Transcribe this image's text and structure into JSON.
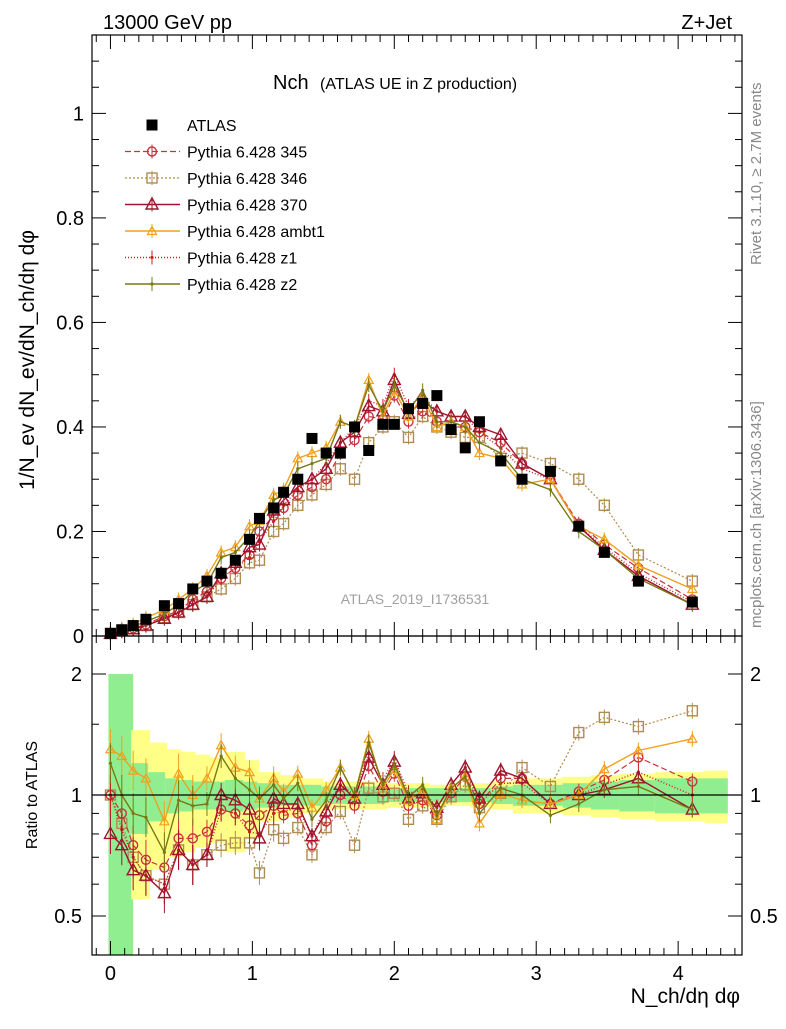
{
  "header": {
    "left": "13000 GeV pp",
    "right": "Z+Jet",
    "side_rivet": "Rivet 3.1.10, ≥ 2.7M events",
    "side_mcplots": "mcplots.cern.ch [arXiv:1306.3436]"
  },
  "chart_data": {
    "type": "line",
    "title": "Nch",
    "subtitle": "(ATLAS UE in Z production)",
    "watermark": "ATLAS_2019_I1736531",
    "xlabel": "N_ch/dη dφ",
    "ylabel": "1/N_ev dN_ev/dN_ch/dη dφ",
    "ratio_ylabel": "Ratio to ATLAS",
    "xlim": [
      -0.13,
      4.45
    ],
    "ylim": [
      0,
      1.15
    ],
    "ratio_ylim": [
      0.33,
      2.35
    ],
    "x_ticks": [
      "0",
      "1",
      "2",
      "3",
      "4"
    ],
    "y_ticks": [
      "0",
      "0.2",
      "0.4",
      "0.6",
      "0.8",
      "1"
    ],
    "ratio_y_ticks": [
      "0.5",
      "1",
      "2"
    ],
    "grid": false,
    "legend_position": "top-left",
    "colors": {
      "data": "#000000",
      "p345": "#c8323c",
      "p346": "#b08c50",
      "p370": "#a0142d",
      "ambt1": "#f0a01e",
      "z1": "#c81e1e",
      "z2": "#787814",
      "band_inner": "#90ee90",
      "band_outer": "#ffff88"
    },
    "x": [
      0.0,
      0.08,
      0.16,
      0.25,
      0.38,
      0.48,
      0.58,
      0.68,
      0.78,
      0.88,
      0.98,
      1.05,
      1.15,
      1.22,
      1.32,
      1.42,
      1.52,
      1.62,
      1.72,
      1.82,
      1.92,
      2.0,
      2.1,
      2.2,
      2.3,
      2.4,
      2.5,
      2.6,
      2.75,
      2.9,
      3.1,
      3.3,
      3.48,
      3.72,
      4.1
    ],
    "band_x": [
      0.0,
      0.16,
      0.28,
      0.4,
      0.5,
      0.6,
      0.7,
      0.82,
      0.95,
      1.05,
      1.2,
      1.35,
      1.5,
      1.65,
      1.8,
      1.95,
      2.1,
      2.25,
      2.4,
      2.55,
      2.7,
      2.85,
      3.0,
      3.2,
      3.4,
      3.6,
      3.85,
      4.2
    ],
    "band_inner_frac": [
      1.0,
      0.2,
      0.14,
      0.1,
      0.09,
      0.08,
      0.08,
      0.09,
      0.08,
      0.07,
      0.06,
      0.06,
      0.05,
      0.05,
      0.05,
      0.04,
      0.04,
      0.04,
      0.04,
      0.04,
      0.05,
      0.06,
      0.06,
      0.07,
      0.08,
      0.09,
      0.1,
      0.1
    ],
    "band_outer_frac": [
      1.0,
      0.45,
      0.35,
      0.3,
      0.28,
      0.26,
      0.24,
      0.28,
      0.22,
      0.14,
      0.12,
      0.1,
      0.08,
      0.08,
      0.08,
      0.07,
      0.07,
      0.06,
      0.06,
      0.07,
      0.08,
      0.1,
      0.1,
      0.11,
      0.12,
      0.13,
      0.14,
      0.15
    ],
    "series": [
      {
        "key": "data",
        "name": "ATLAS",
        "values": [
          0.005,
          0.012,
          0.02,
          0.032,
          0.058,
          0.062,
          0.09,
          0.105,
          0.12,
          0.145,
          0.185,
          0.225,
          0.245,
          0.275,
          0.3,
          0.378,
          0.35,
          0.35,
          0.4,
          0.355,
          0.405,
          0.405,
          0.435,
          0.445,
          0.46,
          0.395,
          0.36,
          0.41,
          0.335,
          0.3,
          0.315,
          0.21,
          0.16,
          0.105,
          0.065
        ],
        "ratio": [
          1.0,
          1.0,
          1.0,
          1.0,
          1.0,
          1.0,
          1.0,
          1.0,
          1.0,
          1.0,
          1.0,
          1.0,
          1.0,
          1.0,
          1.0,
          1.0,
          1.0,
          1.0,
          1.0,
          1.0,
          1.0,
          1.0,
          1.0,
          1.0,
          1.0,
          1.0,
          1.0,
          1.0,
          1.0,
          1.0,
          1.0,
          1.0,
          1.0,
          1.0,
          1.0
        ]
      },
      {
        "key": "p345",
        "name": "Pythia 6.428 345",
        "values": [
          0.005,
          0.011,
          0.015,
          0.022,
          0.038,
          0.048,
          0.07,
          0.085,
          0.11,
          0.13,
          0.155,
          0.2,
          0.23,
          0.245,
          0.27,
          0.285,
          0.3,
          0.35,
          0.375,
          0.42,
          0.415,
          0.46,
          0.41,
          0.43,
          0.41,
          0.4,
          0.4,
          0.39,
          0.37,
          0.33,
          0.3,
          0.215,
          0.175,
          0.13,
          0.07
        ],
        "ratio": [
          1.0,
          0.9,
          0.75,
          0.69,
          0.66,
          0.78,
          0.78,
          0.81,
          0.92,
          0.9,
          0.84,
          0.89,
          0.94,
          0.89,
          0.9,
          0.75,
          0.86,
          1.0,
          0.94,
          1.18,
          1.02,
          1.13,
          0.94,
          0.97,
          0.89,
          1.01,
          1.11,
          0.95,
          1.1,
          1.1,
          0.95,
          1.02,
          1.09,
          1.24,
          1.08
        ]
      },
      {
        "key": "p346",
        "name": "Pythia 6.428 346",
        "values": [
          0.005,
          0.01,
          0.014,
          0.02,
          0.035,
          0.045,
          0.06,
          0.075,
          0.09,
          0.11,
          0.14,
          0.145,
          0.2,
          0.215,
          0.25,
          0.27,
          0.29,
          0.32,
          0.3,
          0.37,
          0.4,
          0.41,
          0.38,
          0.42,
          0.4,
          0.39,
          0.38,
          0.38,
          0.34,
          0.35,
          0.33,
          0.3,
          0.25,
          0.155,
          0.105
        ],
        "ratio": [
          1.0,
          0.85,
          0.7,
          0.63,
          0.6,
          0.73,
          0.67,
          0.71,
          0.75,
          0.76,
          0.76,
          0.64,
          0.82,
          0.78,
          0.83,
          0.71,
          0.83,
          0.91,
          0.75,
          1.04,
          0.99,
          1.01,
          0.87,
          0.94,
          0.87,
          0.99,
          1.06,
          0.93,
          1.01,
          1.17,
          1.05,
          1.43,
          1.56,
          1.48,
          1.62
        ]
      },
      {
        "key": "p370",
        "name": "Pythia 6.428 370",
        "values": [
          0.004,
          0.009,
          0.013,
          0.02,
          0.033,
          0.045,
          0.06,
          0.075,
          0.12,
          0.14,
          0.17,
          0.175,
          0.24,
          0.26,
          0.285,
          0.3,
          0.32,
          0.37,
          0.39,
          0.44,
          0.43,
          0.49,
          0.425,
          0.45,
          0.43,
          0.42,
          0.42,
          0.4,
          0.385,
          0.33,
          0.3,
          0.21,
          0.165,
          0.115,
          0.06
        ],
        "ratio": [
          0.8,
          0.75,
          0.65,
          0.63,
          0.57,
          0.73,
          0.67,
          0.71,
          1.0,
          0.97,
          0.92,
          0.78,
          0.98,
          0.95,
          0.95,
          0.79,
          0.91,
          1.06,
          0.98,
          1.24,
          1.06,
          1.21,
          0.98,
          1.01,
          0.93,
          1.06,
          1.17,
          0.98,
          1.15,
          1.1,
          0.95,
          1.0,
          1.03,
          1.1,
          0.92
        ]
      },
      {
        "key": "ambt1",
        "name": "Pythia 6.428 ambt1",
        "values": [
          0.008,
          0.014,
          0.022,
          0.035,
          0.05,
          0.07,
          0.09,
          0.115,
          0.16,
          0.17,
          0.21,
          0.22,
          0.27,
          0.28,
          0.34,
          0.35,
          0.36,
          0.41,
          0.4,
          0.49,
          0.42,
          0.47,
          0.42,
          0.46,
          0.4,
          0.41,
          0.4,
          0.35,
          0.34,
          0.29,
          0.3,
          0.21,
          0.185,
          0.135,
          0.09
        ],
        "ratio": [
          1.3,
          1.25,
          1.15,
          1.1,
          0.86,
          1.13,
          1.0,
          1.1,
          1.33,
          1.17,
          1.14,
          0.98,
          1.1,
          1.02,
          1.13,
          0.93,
          1.03,
          1.17,
          1.0,
          1.38,
          1.04,
          1.16,
          0.97,
          1.03,
          0.87,
          1.04,
          1.11,
          0.85,
          1.01,
          0.97,
          0.95,
          1.0,
          1.16,
          1.29,
          1.38
        ]
      },
      {
        "key": "z1",
        "name": "Pythia 6.428 z1",
        "values": [
          0.005,
          0.01,
          0.014,
          0.02,
          0.035,
          0.045,
          0.06,
          0.075,
          0.11,
          0.13,
          0.15,
          0.18,
          0.22,
          0.25,
          0.28,
          0.3,
          0.33,
          0.37,
          0.4,
          0.45,
          0.44,
          0.5,
          0.44,
          0.46,
          0.43,
          0.42,
          0.42,
          0.39,
          0.36,
          0.32,
          0.3,
          0.21,
          0.17,
          0.12,
          0.065
        ],
        "ratio": [
          1.0,
          0.82,
          0.7,
          0.63,
          0.6,
          0.73,
          0.67,
          0.71,
          0.92,
          0.9,
          0.81,
          0.8,
          0.9,
          0.91,
          0.93,
          0.79,
          0.94,
          1.06,
          1.0,
          1.27,
          1.09,
          1.23,
          1.01,
          1.03,
          0.93,
          1.06,
          1.17,
          0.95,
          1.07,
          1.07,
          0.95,
          1.0,
          1.06,
          1.14,
          1.0
        ]
      },
      {
        "key": "z2",
        "name": "Pythia 6.428 z2",
        "values": [
          0.006,
          0.012,
          0.018,
          0.028,
          0.042,
          0.06,
          0.085,
          0.1,
          0.15,
          0.16,
          0.19,
          0.22,
          0.26,
          0.27,
          0.32,
          0.33,
          0.34,
          0.41,
          0.4,
          0.48,
          0.43,
          0.48,
          0.43,
          0.47,
          0.41,
          0.41,
          0.4,
          0.37,
          0.35,
          0.3,
          0.28,
          0.2,
          0.165,
          0.11,
          0.06
        ],
        "ratio": [
          1.2,
          1.0,
          0.9,
          0.88,
          0.72,
          0.97,
          0.94,
          0.95,
          1.25,
          1.1,
          1.03,
          0.98,
          1.06,
          0.98,
          1.07,
          0.87,
          0.97,
          1.17,
          1.0,
          1.35,
          1.06,
          1.19,
          0.99,
          1.06,
          0.89,
          1.04,
          1.11,
          0.9,
          1.04,
          1.0,
          0.89,
          0.95,
          1.03,
          1.05,
          0.92
        ]
      }
    ]
  }
}
